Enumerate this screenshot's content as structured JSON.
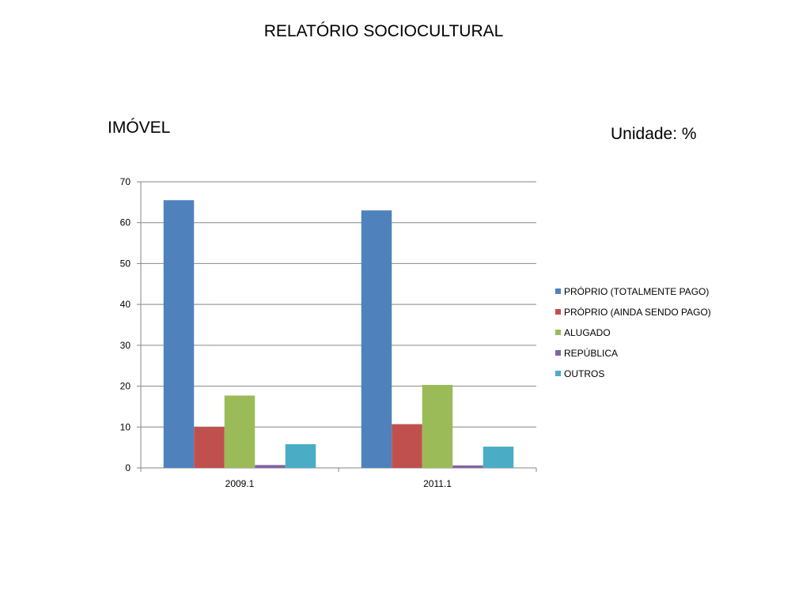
{
  "slide": {
    "title": "RELATÓRIO SOCIOCULTURAL",
    "section_label": "IMÓVEL",
    "unit_label": "Unidade: %"
  },
  "chart_data": {
    "type": "bar",
    "categories": [
      "2009.1",
      "2011.1"
    ],
    "series": [
      {
        "name": "PRÓPRIO (TOTALMENTE PAGO)",
        "color": "#4F81BD",
        "values": [
          65.5,
          63.0
        ]
      },
      {
        "name": "PRÓPRIO (AINDA SENDO PAGO)",
        "color": "#C0504D",
        "values": [
          10.0,
          10.7
        ]
      },
      {
        "name": "ALUGADO",
        "color": "#9BBB59",
        "values": [
          17.7,
          20.3
        ]
      },
      {
        "name": "REPÚBLICA",
        "color": "#8064A2",
        "values": [
          0.7,
          0.6
        ]
      },
      {
        "name": "OUTROS",
        "color": "#4BACC6",
        "values": [
          5.8,
          5.2
        ]
      }
    ],
    "ylim": [
      0,
      70
    ],
    "yticks": [
      0,
      10,
      20,
      30,
      40,
      50,
      60,
      70
    ],
    "grid": true,
    "legend_position": "right"
  }
}
